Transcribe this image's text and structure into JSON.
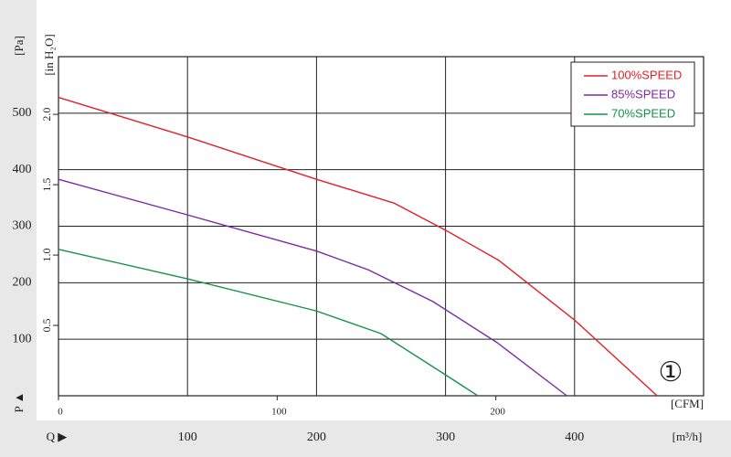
{
  "chart_data": {
    "type": "line",
    "ylabel": "[Pa]",
    "y2label": "[in H₂O]",
    "xlabel": "[m³/h]",
    "x2label": "[CFM]",
    "y_marker": "P ▲",
    "x_marker": "Q ▶",
    "annotation": "①",
    "xlim": [
      0,
      500
    ],
    "xticks": [
      100,
      200,
      300,
      400
    ],
    "ylim": [
      0,
      600
    ],
    "yticks": [
      100,
      200,
      300,
      400,
      500
    ],
    "x2lim": [
      0,
      295
    ],
    "x2ticks": [
      0,
      100,
      200
    ],
    "y2lim": [
      0,
      2.41
    ],
    "y2ticks": [
      0.5,
      {
        "value": 1.0,
        "label": "1.0"
      },
      1.5,
      {
        "value": 2.0,
        "label": "2.0"
      }
    ],
    "grid": true,
    "legend": "upper right",
    "series": [
      {
        "name": "100%SPEED",
        "color": "#e0202a",
        "x": [
          0,
          100,
          200,
          260,
          300,
          341,
          400,
          464
        ],
        "values": [
          528,
          458,
          383,
          341,
          293,
          240,
          134,
          0
        ]
      },
      {
        "name": "85%SPEED",
        "color": "#7b2aa0",
        "x": [
          0,
          100,
          200,
          240,
          290,
          340,
          394
        ],
        "values": [
          383,
          320,
          256,
          223,
          167,
          94,
          0
        ]
      },
      {
        "name": "70%SPEED",
        "color": "#14924a",
        "x": [
          0,
          100,
          200,
          250,
          300,
          325
        ],
        "values": [
          259,
          207,
          150,
          110,
          37,
          0
        ]
      }
    ]
  }
}
